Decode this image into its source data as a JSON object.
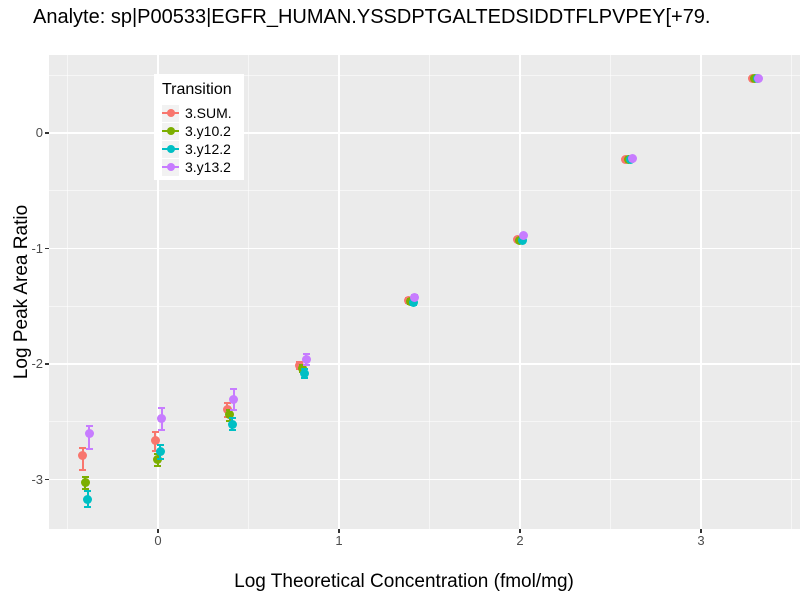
{
  "title": "Analyte: sp|P00533|EGFR_HUMAN.YSSDPTGALTEDSIDDTFLPVPEY[+79.",
  "panel_background": "#EBEBEB",
  "gridline_color": "#FFFFFF",
  "tick_label_color": "#4D4D4D",
  "chart_data": {
    "type": "scatter",
    "title": "Analyte: sp|P00533|EGFR_HUMAN.YSSDPTGALTEDSIDDTFLPVPEY[+79.",
    "xlabel": "Log Theoretical Concentration (fmol/mg)",
    "ylabel": "Log Peak Area Ratio",
    "xlim": [
      -0.6,
      3.55
    ],
    "ylim": [
      -3.43,
      0.68
    ],
    "x_ticks": [
      0,
      1,
      2,
      3
    ],
    "y_ticks": [
      0,
      -1,
      -2,
      -3
    ],
    "x_minor": [
      -0.5,
      0.5,
      1.5,
      2.5,
      3.5
    ],
    "y_minor": [
      0.5,
      -0.5,
      -1.5,
      -2.5
    ],
    "grid": "on",
    "legend_title": "Transition",
    "legend_position": "top-left-inside",
    "error_bars": true,
    "series": [
      {
        "name": "3.SUM.",
        "color": "#F8766D",
        "points": [
          {
            "x": -0.4,
            "y": -2.79,
            "ymin": -2.92,
            "ymax": -2.73
          },
          {
            "x": 0,
            "y": -2.66,
            "ymin": -2.75,
            "ymax": -2.59
          },
          {
            "x": 0.4,
            "y": -2.39,
            "ymin": -2.46,
            "ymax": -2.34
          },
          {
            "x": 0.8,
            "y": -2.01,
            "ymin": -2.04,
            "ymax": -1.98
          },
          {
            "x": 1.4,
            "y": -1.45,
            "ymin": -1.47,
            "ymax": -1.43
          },
          {
            "x": 2,
            "y": -0.92,
            "ymin": -0.93,
            "ymax": -0.91
          },
          {
            "x": 2.6,
            "y": -0.23,
            "ymin": -0.24,
            "ymax": -0.22
          },
          {
            "x": 3.3,
            "y": 0.47,
            "ymin": 0.46,
            "ymax": 0.48
          }
        ]
      },
      {
        "name": "3.y10.2",
        "color": "#7CAE00",
        "points": [
          {
            "x": -0.4,
            "y": -3.03,
            "ymin": -3.08,
            "ymax": -2.98
          },
          {
            "x": 0,
            "y": -2.83,
            "ymin": -2.88,
            "ymax": -2.78
          },
          {
            "x": 0.4,
            "y": -2.44,
            "ymin": -2.49,
            "ymax": -2.4
          },
          {
            "x": 0.8,
            "y": -2.04,
            "ymin": -2.07,
            "ymax": -2.01
          },
          {
            "x": 1.4,
            "y": -1.46,
            "ymin": -1.48,
            "ymax": -1.44
          },
          {
            "x": 2,
            "y": -0.93,
            "ymin": -0.94,
            "ymax": -0.92
          },
          {
            "x": 2.6,
            "y": -0.23,
            "ymin": -0.24,
            "ymax": -0.22
          },
          {
            "x": 3.3,
            "y": 0.47,
            "ymin": 0.46,
            "ymax": 0.48
          }
        ]
      },
      {
        "name": "3.y12.2",
        "color": "#00BFC4",
        "points": [
          {
            "x": -0.4,
            "y": -3.17,
            "ymin": -3.24,
            "ymax": -3.1
          },
          {
            "x": 0,
            "y": -2.76,
            "ymin": -2.82,
            "ymax": -2.7
          },
          {
            "x": 0.4,
            "y": -2.52,
            "ymin": -2.57,
            "ymax": -2.47
          },
          {
            "x": 0.8,
            "y": -2.08,
            "ymin": -2.12,
            "ymax": -2.04
          },
          {
            "x": 1.4,
            "y": -1.47,
            "ymin": -1.49,
            "ymax": -1.45
          },
          {
            "x": 2,
            "y": -0.93,
            "ymin": -0.94,
            "ymax": -0.92
          },
          {
            "x": 2.6,
            "y": -0.23,
            "ymin": -0.24,
            "ymax": -0.22
          },
          {
            "x": 3.3,
            "y": 0.47,
            "ymin": 0.46,
            "ymax": 0.48
          }
        ]
      },
      {
        "name": "3.y13.2",
        "color": "#C77CFF",
        "points": [
          {
            "x": -0.4,
            "y": -2.6,
            "ymin": -2.74,
            "ymax": -2.54
          },
          {
            "x": 0,
            "y": -2.47,
            "ymin": -2.57,
            "ymax": -2.38
          },
          {
            "x": 0.4,
            "y": -2.31,
            "ymin": -2.4,
            "ymax": -2.22
          },
          {
            "x": 0.8,
            "y": -1.96,
            "ymin": -2.01,
            "ymax": -1.91
          },
          {
            "x": 1.4,
            "y": -1.42,
            "ymin": -1.44,
            "ymax": -1.4
          },
          {
            "x": 2,
            "y": -0.89,
            "ymin": -0.9,
            "ymax": -0.88
          },
          {
            "x": 2.6,
            "y": -0.22,
            "ymin": -0.23,
            "ymax": -0.21
          },
          {
            "x": 3.3,
            "y": 0.47,
            "ymin": 0.46,
            "ymax": 0.48
          }
        ]
      }
    ]
  }
}
